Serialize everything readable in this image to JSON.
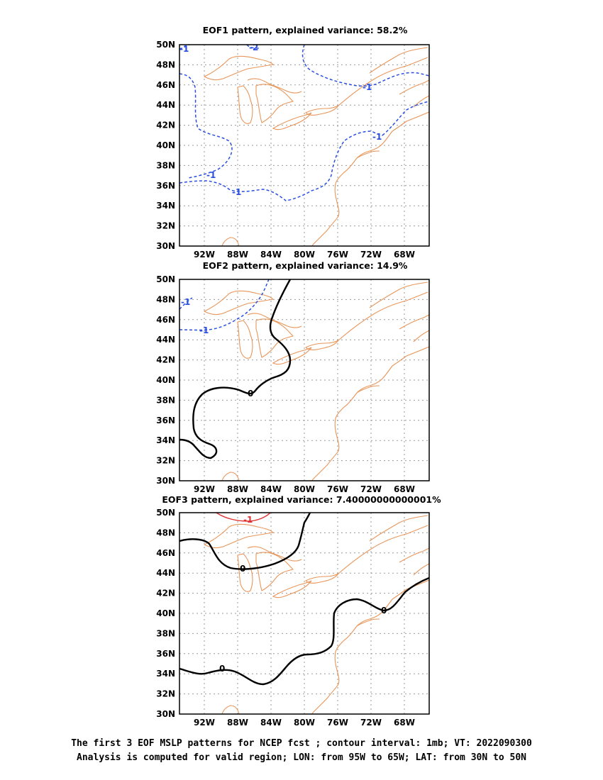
{
  "panels": [
    {
      "title": "EOF1 pattern, explained variance: 58.2%"
    },
    {
      "title": "EOF2 pattern, explained variance: 14.9%"
    },
    {
      "title": "EOF3 pattern, explained variance: 7.40000000000001%"
    }
  ],
  "axes": {
    "lon_ticks": [
      "92W",
      "88W",
      "84W",
      "80W",
      "76W",
      "72W",
      "68W"
    ],
    "lat_ticks": [
      "50N",
      "48N",
      "46N",
      "44N",
      "42N",
      "40N",
      "38N",
      "36N",
      "34N",
      "32N",
      "30N"
    ],
    "lon_range": [
      -95,
      -65
    ],
    "lat_range": [
      30,
      50
    ]
  },
  "contour_labels": {
    "eof1": [
      "-1",
      "-1",
      "-1",
      "-1",
      "-1",
      "-2",
      "-1"
    ],
    "eof2": [
      "-1",
      "-1",
      "0"
    ],
    "eof3": [
      "-1",
      "0",
      "0",
      "0"
    ]
  },
  "colors": {
    "negative_contour": "#2b4fe0",
    "positive_contour": "#e03030",
    "zero_contour": "#000000",
    "coastline": "#e8965a",
    "grid": "#9a9a9a"
  },
  "caption": {
    "line1": "The first 3 EOF MSLP patterns for NCEP fcst ; contour interval: 1mb; VT: 2022090300",
    "line2": "Analysis is computed for valid region; LON: from 95W to 65W; LAT: from 30N to 50N"
  }
}
